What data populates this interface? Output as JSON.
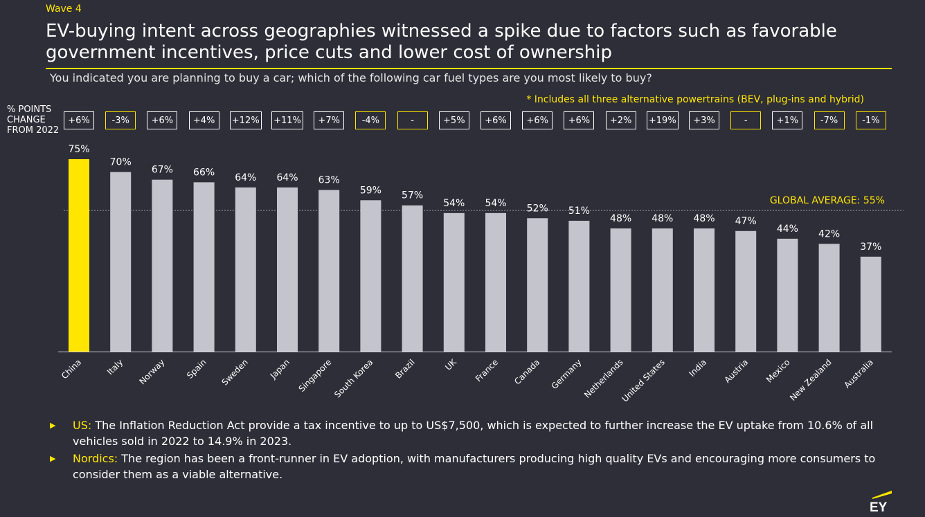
{
  "header": {
    "wave": "Wave 4",
    "title": "EV-buying intent across geographies witnessed a spike due to factors such as favorable government incentives, price cuts and lower cost of ownership",
    "subtitle": "You indicated you are planning to buy a car; which of the following car fuel types are you most likely to buy?",
    "footnote": "* Includes all three alternative powertrains (BEV, plug-ins and hybrid)"
  },
  "change_label": [
    "% POINTS",
    "CHANGE",
    "FROM 2022"
  ],
  "chart_data": {
    "type": "bar",
    "title": "",
    "categories": [
      "China",
      "Italy",
      "Norway",
      "Spain",
      "Sweden",
      "Japan",
      "Singapore",
      "South Korea",
      "Brazil",
      "UK",
      "France",
      "Canada",
      "Germany",
      "Netherlands",
      "United States",
      "India",
      "Austria",
      "Mexico",
      "New Zealand",
      "Australia"
    ],
    "values": [
      75,
      70,
      67,
      66,
      64,
      64,
      63,
      59,
      57,
      54,
      54,
      52,
      51,
      48,
      48,
      48,
      47,
      44,
      42,
      37
    ],
    "value_labels": [
      "75%",
      "70%",
      "67%",
      "66%",
      "64%",
      "64%",
      "63%",
      "59%",
      "57%",
      "54%",
      "54%",
      "52%",
      "51%",
      "48%",
      "48%",
      "48%",
      "47%",
      "44%",
      "42%",
      "37%"
    ],
    "change_from_2022": [
      "+6%",
      "-3%",
      "+6%",
      "+4%",
      "+12%",
      "+11%",
      "+7%",
      "-4%",
      "-",
      "+5%",
      "+6%",
      "+6%",
      "+6%",
      "+2%",
      "+19%",
      "+3%",
      "-",
      "+1%",
      "-7%",
      "-1%"
    ],
    "reference_line": {
      "value": 55,
      "label": "GLOBAL AVERAGE: 55%"
    },
    "highlight_category": "China",
    "colors": {
      "highlight": "#ffe600",
      "bar": "#c4c4cd",
      "background": "#2e2e38",
      "accent": "#ffe600"
    },
    "ylim": [
      0,
      75
    ],
    "grid": false,
    "legend": "none"
  },
  "bullets": [
    {
      "lead": "US:",
      "text": " The Inflation Reduction Act provide a tax incentive to up to US$7,500, which is expected to further increase the EV uptake from 10.6% of all vehicles sold in 2022 to 14.9% in 2023."
    },
    {
      "lead": "Nordics:",
      "text": " The region has been a front-runner in EV adoption, with manufacturers producing high quality EVs and encouraging more consumers to consider them as a viable alternative."
    }
  ],
  "logo": {
    "text": "EY"
  }
}
